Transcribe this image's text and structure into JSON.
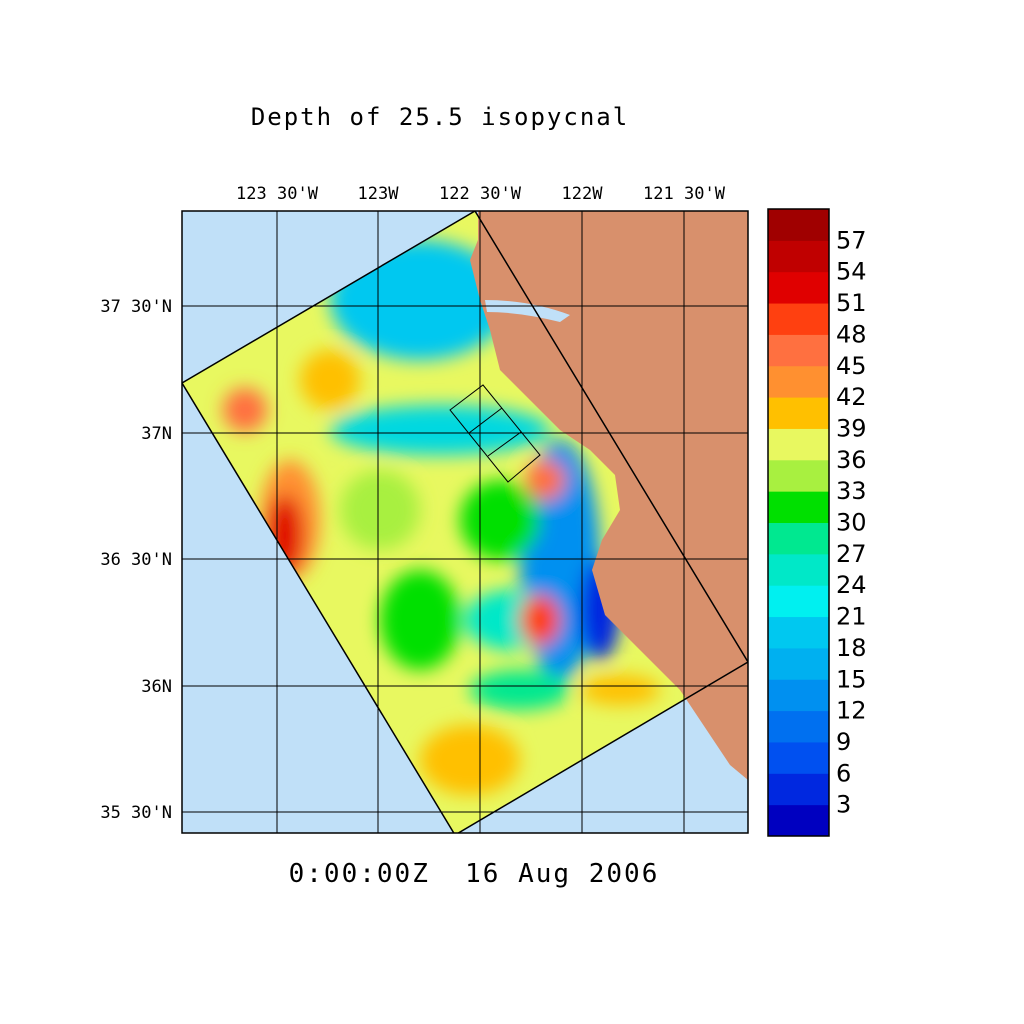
{
  "title": "Depth of 25.5 isopycnal",
  "lon_labels": [
    "123 30'W",
    "123W",
    "122 30'W",
    "122W",
    "121 30'W"
  ],
  "lat_labels": [
    "37 30'N",
    "37N",
    "36 30'N",
    "36N",
    "35 30'N"
  ],
  "colorbar": {
    "labels": [
      3,
      6,
      9,
      12,
      15,
      18,
      21,
      24,
      27,
      30,
      33,
      36,
      39,
      42,
      45,
      48,
      51,
      54,
      57
    ],
    "colors": [
      "#0000c0",
      "#0028e0",
      "#0050f0",
      "#0070f0",
      "#0090f0",
      "#00b0f0",
      "#00c8f0",
      "#00f0f0",
      "#00e8c8",
      "#00e890",
      "#00e000",
      "#a8f040",
      "#e8f860",
      "#ffc000",
      "#ff9030",
      "#ff7040",
      "#ff4010",
      "#e00000",
      "#c00000",
      "#a00000"
    ]
  },
  "timestamp": "0:00:00Z  16 Aug 2006"
}
